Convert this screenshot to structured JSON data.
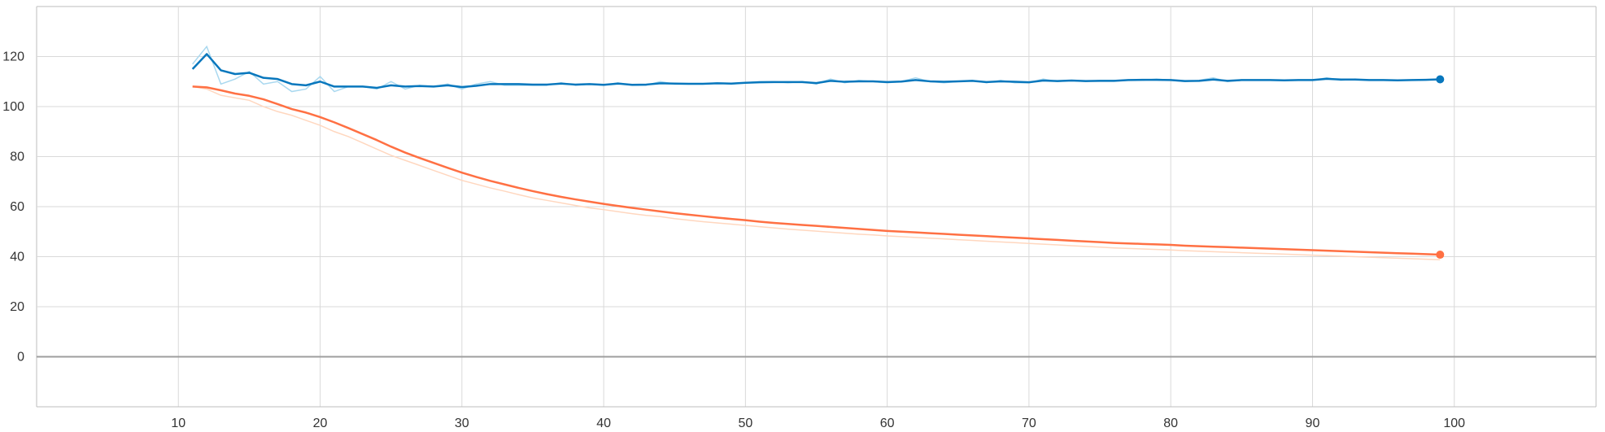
{
  "chart_data": {
    "type": "line",
    "title": "",
    "xlabel": "",
    "ylabel": "",
    "xlim": [
      0,
      110
    ],
    "ylim": [
      -20,
      140
    ],
    "x_ticks": [
      "10",
      "20",
      "30",
      "40",
      "50",
      "60",
      "70",
      "80",
      "90",
      "100"
    ],
    "y_ticks": [
      "0",
      "20",
      "40",
      "60",
      "80",
      "100",
      "120"
    ],
    "grid": true,
    "legend": "none",
    "series": [
      {
        "color": "#0877bd",
        "raw_color": "#a9d8ef",
        "x": [
          11,
          12,
          13,
          14,
          15,
          16,
          17,
          18,
          19,
          20,
          21,
          22,
          23,
          24,
          25,
          26,
          27,
          28,
          29,
          30,
          31,
          32,
          33,
          34,
          35,
          36,
          37,
          38,
          39,
          40,
          41,
          42,
          43,
          44,
          45,
          46,
          47,
          48,
          49,
          50,
          51,
          52,
          53,
          54,
          55,
          56,
          57,
          58,
          59,
          60,
          61,
          62,
          63,
          64,
          65,
          66,
          67,
          68,
          69,
          70,
          71,
          72,
          73,
          74,
          75,
          76,
          77,
          78,
          79,
          80,
          81,
          82,
          83,
          84,
          85,
          86,
          87,
          88,
          89,
          90,
          91,
          92,
          93,
          94,
          95,
          96,
          97,
          98,
          99
        ],
        "smoothed": [
          115,
          121,
          114.5,
          113,
          113.5,
          111.5,
          111,
          109,
          108.5,
          110,
          108,
          108,
          108,
          107.5,
          108.5,
          108,
          108.2,
          108,
          108.5,
          107.8,
          108.3,
          109,
          109,
          109,
          108.8,
          108.8,
          109.2,
          108.8,
          109,
          108.7,
          109.2,
          108.7,
          108.8,
          109.3,
          109.2,
          109.1,
          109.1,
          109.3,
          109.2,
          109.5,
          109.7,
          109.8,
          109.8,
          109.8,
          109.4,
          110.3,
          109.9,
          110.1,
          110.1,
          109.8,
          110,
          110.6,
          110.1,
          109.9,
          110.1,
          110.3,
          109.8,
          110.1,
          109.9,
          109.7,
          110.4,
          110.2,
          110.4,
          110.2,
          110.3,
          110.3,
          110.6,
          110.7,
          110.7,
          110.6,
          110.2,
          110.3,
          110.8,
          110.3,
          110.6,
          110.6,
          110.6,
          110.5,
          110.6,
          110.6,
          111.1,
          110.8,
          110.8,
          110.6,
          110.6,
          110.5,
          110.6,
          110.7,
          110.9
        ],
        "raw": [
          117,
          124,
          109,
          111,
          114,
          109,
          110,
          106,
          107,
          112,
          106,
          108,
          108,
          107,
          110,
          107,
          108.5,
          108,
          109,
          107,
          109,
          110,
          108.5,
          108.5,
          108.5,
          108.5,
          109.5,
          108.5,
          109,
          108.5,
          109.5,
          108.5,
          108.5,
          110,
          109,
          109,
          109,
          109.5,
          109,
          109.5,
          110,
          110,
          109.5,
          110,
          109,
          111,
          109.5,
          110.5,
          110,
          109.5,
          110,
          111.5,
          110,
          109.5,
          110,
          110.5,
          109.5,
          110.5,
          109.5,
          109.5,
          111,
          110,
          110.5,
          110,
          110.5,
          110.5,
          110.5,
          110.5,
          111,
          110.5,
          110,
          110.5,
          111.5,
          110,
          110.5,
          110.5,
          110.5,
          110.5,
          110.5,
          110.5,
          111.5,
          110.5,
          111,
          110.5,
          110.5,
          110.5,
          110.5,
          110.8,
          110.9
        ]
      },
      {
        "color": "#ff7043",
        "raw_color": "#ffd7bf",
        "x": [
          11,
          12,
          13,
          14,
          15,
          16,
          17,
          18,
          19,
          20,
          21,
          22,
          23,
          24,
          25,
          26,
          27,
          28,
          29,
          30,
          31,
          32,
          33,
          34,
          35,
          36,
          37,
          38,
          39,
          40,
          41,
          42,
          43,
          44,
          45,
          46,
          47,
          48,
          49,
          50,
          51,
          52,
          53,
          54,
          55,
          56,
          57,
          58,
          59,
          60,
          61,
          62,
          63,
          64,
          65,
          66,
          67,
          68,
          69,
          70,
          71,
          72,
          73,
          74,
          75,
          76,
          77,
          78,
          79,
          80,
          81,
          82,
          83,
          84,
          85,
          86,
          87,
          88,
          89,
          90,
          91,
          92,
          93,
          94,
          95,
          96,
          97,
          98,
          99
        ],
        "smoothed": [
          108,
          107.7,
          106.5,
          105.2,
          104.3,
          102.9,
          101,
          99,
          97.6,
          95.8,
          93.7,
          91.4,
          89,
          86.6,
          84,
          81.6,
          79.5,
          77.5,
          75.5,
          73.6,
          71.9,
          70.3,
          68.9,
          67.5,
          66.2,
          65,
          63.9,
          62.9,
          62,
          61.1,
          60.3,
          59.5,
          58.8,
          58.1,
          57.4,
          56.8,
          56.2,
          55.6,
          55.1,
          54.6,
          54,
          53.5,
          53.1,
          52.7,
          52.3,
          51.9,
          51.5,
          51.1,
          50.7,
          50.3,
          50,
          49.7,
          49.4,
          49.1,
          48.8,
          48.5,
          48.2,
          47.9,
          47.6,
          47.3,
          47,
          46.7,
          46.4,
          46.1,
          45.8,
          45.5,
          45.3,
          45.1,
          44.9,
          44.7,
          44.4,
          44.2,
          44,
          43.8,
          43.6,
          43.4,
          43.2,
          43,
          42.8,
          42.6,
          42.4,
          42.2,
          42,
          41.8,
          41.6,
          41.4,
          41.2,
          41,
          40.8
        ],
        "raw": [
          108,
          107,
          104.5,
          103.5,
          102.5,
          100,
          98,
          96.5,
          94.5,
          92.5,
          90,
          88,
          85.5,
          83,
          80.5,
          78.5,
          76.5,
          74.5,
          72.5,
          70.5,
          69,
          67.5,
          66.2,
          64.8,
          63.5,
          62.5,
          61.5,
          60.5,
          59.5,
          58.8,
          58,
          57.2,
          56.5,
          56,
          55.2,
          54.6,
          54,
          53.5,
          53,
          52.5,
          52,
          51.5,
          51,
          50.6,
          50.2,
          49.8,
          49.4,
          49,
          48.7,
          48.3,
          48,
          47.7,
          47.4,
          47.1,
          46.8,
          46.5,
          46.2,
          45.9,
          45.6,
          45.3,
          45,
          44.7,
          44.4,
          44.1,
          43.8,
          43.5,
          43.3,
          43.1,
          42.9,
          42.7,
          42.4,
          42.2,
          42,
          41.8,
          41.6,
          41.4,
          41.2,
          41,
          40.8,
          40.6,
          40.4,
          40.2,
          40,
          39.8,
          39.6,
          39.4,
          39.2,
          39,
          38.8
        ]
      }
    ]
  }
}
